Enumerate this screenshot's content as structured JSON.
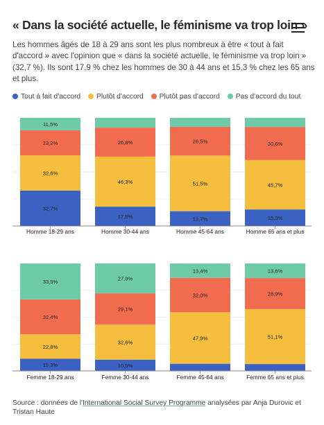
{
  "title": "« Dans la société actuelle, le féminisme va trop loin »",
  "menu_icon": "hamburger-menu-icon",
  "intro": "Les hommes âgés de 18 à 29 ans sont les plus nombreux à être « tout à fait d'accord » avec l'opinion que « dans la société actuelle, le féminisme va trop loin » (32,7 %). Ils sont 17,9 % chez les hommes de 30 à 44 ans et 15,3 % chez les 65 ans et plus.",
  "legend": [
    {
      "label": "Tout à fait d'accord",
      "color": "#3b62c2"
    },
    {
      "label": "Plutôt d'accord",
      "color": "#f5be3e"
    },
    {
      "label": "Plutôt pas d'accord",
      "color": "#f26c4f"
    },
    {
      "label": "Pas d'accord du tout",
      "color": "#6fcaa7"
    }
  ],
  "source": {
    "prefix": "Source : données de l'",
    "link": "International Social Survey Programme",
    "suffix": " analysées par Anja Durovic et Tristan Haute"
  },
  "chart_data": [
    {
      "type": "bar",
      "stacked": true,
      "ylim": [
        0,
        100
      ],
      "categories": [
        "Homme 18-29 ans",
        "Homme 30-44 ans",
        "Homme 45-64 ans",
        "Homme 65 ans et plus"
      ],
      "series": [
        {
          "name": "Tout à fait d'accord",
          "values": [
            32.7,
            17.9,
            13.7,
            15.3
          ],
          "labels": [
            "32,7%",
            "17,9%",
            "13,7%",
            "15,3%"
          ]
        },
        {
          "name": "Plutôt d'accord",
          "values": [
            32.6,
            46.3,
            51.5,
            45.7
          ],
          "labels": [
            "32,6%",
            "46,3%",
            "51,5%",
            "45,7%"
          ]
        },
        {
          "name": "Plutôt pas d'accord",
          "values": [
            23.2,
            26.8,
            26.5,
            30.6
          ],
          "labels": [
            "23,2%",
            "26,8%",
            "26,5%",
            "30,6%"
          ]
        },
        {
          "name": "Pas d'accord du tout",
          "values": [
            11.5,
            9.0,
            8.3,
            8.4
          ],
          "labels": [
            "11,5%",
            "",
            "",
            ""
          ]
        }
      ]
    },
    {
      "type": "bar",
      "stacked": true,
      "ylim": [
        0,
        100
      ],
      "categories": [
        "Femme 18-29 ans",
        "Femme 30-44 ans",
        "Femme 45-64 ans",
        "Femme 65 ans et plus"
      ],
      "series": [
        {
          "name": "Tout à fait d'accord",
          "values": [
            11.3,
            10.5,
            6.7,
            6.4
          ],
          "labels": [
            "11,3%",
            "10,5%",
            "",
            ""
          ]
        },
        {
          "name": "Plutôt d'accord",
          "values": [
            22.8,
            32.6,
            47.9,
            51.1
          ],
          "labels": [
            "22,8%",
            "32,6%",
            "47,9%",
            "51,1%"
          ]
        },
        {
          "name": "Plutôt pas d'accord",
          "values": [
            32.4,
            29.1,
            32.0,
            28.9
          ],
          "labels": [
            "32,4%",
            "29,1%",
            "32,0%",
            "28,9%"
          ]
        },
        {
          "name": "Pas d'accord du tout",
          "values": [
            33.5,
            27.9,
            13.4,
            13.6
          ],
          "labels": [
            "33,5%",
            "27,9%",
            "13,4%",
            "13,6%"
          ]
        }
      ]
    }
  ]
}
